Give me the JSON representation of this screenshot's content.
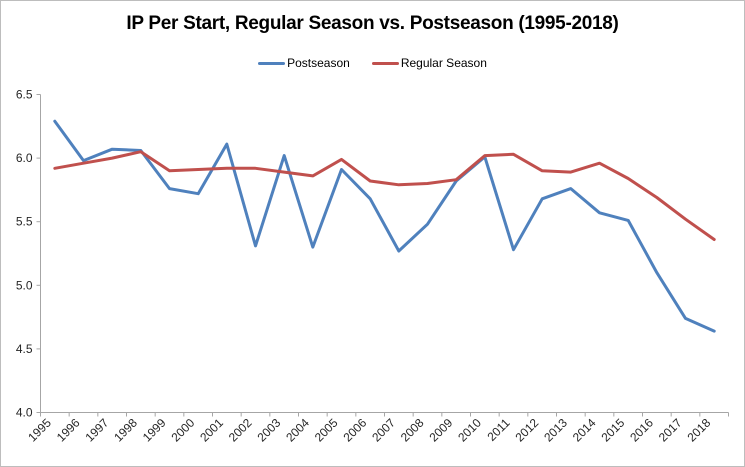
{
  "chart_data": {
    "type": "line",
    "title": "IP Per Start, Regular Season vs. Postseason (1995-2018)",
    "categories": [
      "1995",
      "1996",
      "1997",
      "1998",
      "1999",
      "2000",
      "2001",
      "2002",
      "2003",
      "2004",
      "2005",
      "2006",
      "2007",
      "2008",
      "2009",
      "2010",
      "2011",
      "2012",
      "2013",
      "2014",
      "2015",
      "2016",
      "2017",
      "2018"
    ],
    "series": [
      {
        "name": "Postseason",
        "color": "#4F81BD",
        "values": [
          6.29,
          5.98,
          6.07,
          6.06,
          5.76,
          5.72,
          6.11,
          5.31,
          6.02,
          5.3,
          5.91,
          5.68,
          5.27,
          5.48,
          5.82,
          6.01,
          5.28,
          5.68,
          5.76,
          5.57,
          5.51,
          5.1,
          4.74,
          4.64
        ]
      },
      {
        "name": "Regular Season",
        "color": "#C0504D",
        "values": [
          5.92,
          5.96,
          6.0,
          6.05,
          5.9,
          5.91,
          5.92,
          5.92,
          5.89,
          5.86,
          5.99,
          5.82,
          5.79,
          5.8,
          5.83,
          6.02,
          6.03,
          5.9,
          5.89,
          5.96,
          5.84,
          5.69,
          5.52,
          5.36
        ]
      }
    ],
    "ylim": [
      4.0,
      6.5
    ],
    "ytick_labels": [
      "6.5",
      "6.0",
      "5.5",
      "5.0",
      "4.5",
      "4.0"
    ],
    "xlabel": "",
    "ylabel": "",
    "grid": false,
    "legend_position": "top",
    "axis_color": "#a6a6a6"
  }
}
